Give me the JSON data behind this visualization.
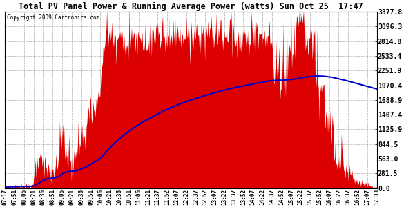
{
  "title": "Total PV Panel Power & Running Average Power (watts) Sun Oct 25  17:47",
  "copyright": "Copyright 2009 Cartronics.com",
  "yticks": [
    0.0,
    281.5,
    563.0,
    844.5,
    1125.9,
    1407.4,
    1688.9,
    1970.4,
    2251.9,
    2533.4,
    2814.8,
    3096.3,
    3377.8
  ],
  "ylim": [
    0.0,
    3377.8
  ],
  "background_color": "#ffffff",
  "plot_bg_color": "#ffffff",
  "grid_color": "#999999",
  "fill_color": "#dd0000",
  "line_color": "#0000cc",
  "xtick_labels": [
    "07:17",
    "07:51",
    "08:06",
    "08:21",
    "08:36",
    "08:51",
    "09:06",
    "09:21",
    "09:36",
    "09:51",
    "10:06",
    "10:21",
    "10:36",
    "10:51",
    "11:06",
    "11:21",
    "11:37",
    "11:52",
    "12:07",
    "12:22",
    "12:37",
    "12:52",
    "13:07",
    "13:22",
    "13:37",
    "13:52",
    "14:07",
    "14:22",
    "14:37",
    "14:52",
    "15:07",
    "15:22",
    "15:37",
    "15:52",
    "16:07",
    "16:22",
    "16:37",
    "16:52",
    "17:07",
    "17:33"
  ]
}
